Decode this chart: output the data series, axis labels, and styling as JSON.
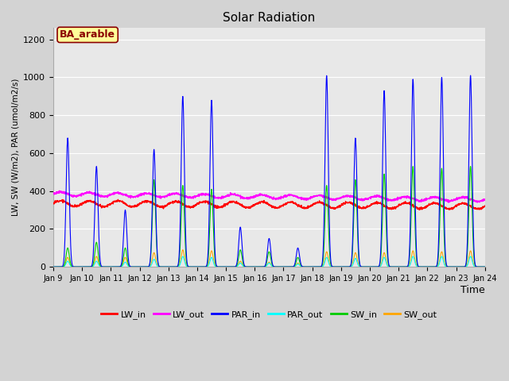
{
  "title": "Solar Radiation",
  "xlabel": "Time",
  "ylabel": "LW, SW (W/m2), PAR (umol/m2/s)",
  "annotation": "BA_arable",
  "ylim": [
    0,
    1260
  ],
  "yticks": [
    0,
    200,
    400,
    600,
    800,
    1000,
    1200
  ],
  "xtick_labels": [
    "Jan 9",
    "Jan 10",
    "Jan 11",
    "Jan 12",
    "Jan 13",
    "Jan 14",
    "Jan 15",
    "Jan 16",
    "Jan 17",
    "Jan 18",
    "Jan 19",
    "Jan 20",
    "Jan 21",
    "Jan 22",
    "Jan 23",
    "Jan 24"
  ],
  "lines": {
    "LW_in": {
      "color": "#ff0000",
      "lw": 1.0
    },
    "LW_out": {
      "color": "#ff00ff",
      "lw": 1.0
    },
    "PAR_in": {
      "color": "#0000ff",
      "lw": 0.8
    },
    "PAR_out": {
      "color": "#00ffff",
      "lw": 0.8
    },
    "SW_in": {
      "color": "#00cc00",
      "lw": 0.8
    },
    "SW_out": {
      "color": "#ffa500",
      "lw": 0.8
    }
  },
  "par_peaks": [
    680,
    530,
    300,
    620,
    900,
    880,
    210,
    150,
    100,
    1010,
    680,
    930,
    990,
    1000,
    1010
  ],
  "sw_in_peaks": [
    100,
    130,
    100,
    460,
    430,
    410,
    90,
    80,
    50,
    430,
    460,
    490,
    530,
    520,
    530
  ],
  "sw_out_peaks": [
    50,
    55,
    50,
    75,
    90,
    85,
    30,
    25,
    20,
    80,
    75,
    75,
    85,
    80,
    85
  ],
  "par_out_peaks": [
    30,
    30,
    25,
    40,
    55,
    50,
    20,
    20,
    15,
    50,
    45,
    50,
    55,
    55,
    55
  ],
  "background_color": "#d3d3d3",
  "plot_bg_color": "#e8e8e8",
  "grid_color": "#ffffff",
  "annotation_bg": "#ffff99",
  "annotation_border": "#8b0000"
}
